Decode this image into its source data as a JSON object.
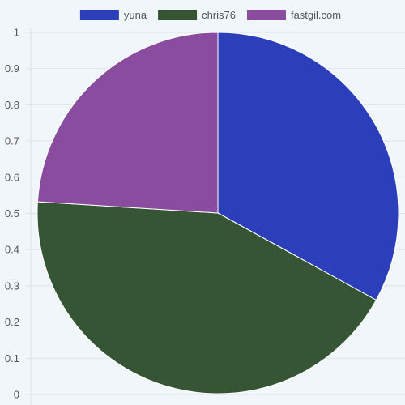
{
  "chart_data": {
    "type": "pie",
    "categories": [
      "yuna",
      "chris76",
      "fastgil.com"
    ],
    "values": [
      0.33,
      0.43,
      0.24
    ],
    "colors": [
      "#2b3fba",
      "#365535",
      "#8a4c9e"
    ],
    "y_ticks": [
      "0",
      "0.1",
      "0.2",
      "0.3",
      "0.4",
      "0.5",
      "0.6",
      "0.7",
      "0.8",
      "0.9",
      "1"
    ],
    "ylim": [
      0,
      1
    ],
    "grid": true,
    "legend_position": "top",
    "title": ""
  }
}
